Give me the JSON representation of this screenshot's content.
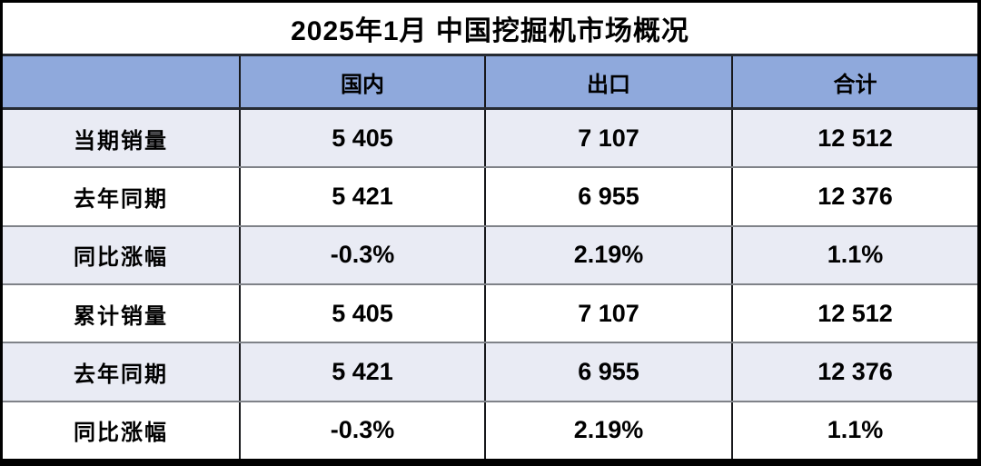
{
  "colors": {
    "header_bg": "#8FA9DC",
    "alt_row_bg": "#E9EBF4",
    "plain_row_bg": "#FFFFFF",
    "outer_border": "#000000",
    "vertical_border": "#17181B",
    "row_separator": "#7F8288",
    "header_separator": "#262B33",
    "text": "#000000"
  },
  "chart_data": {
    "type": "table",
    "title": "2025年1月 中国挖掘机市场概况",
    "columns": [
      "",
      "国内",
      "出口",
      "合计"
    ],
    "rows": [
      {
        "label": "当期销量",
        "values": [
          "5 405",
          "7 107",
          "12 512"
        ]
      },
      {
        "label": "去年同期",
        "values": [
          "5 421",
          "6 955",
          "12 376"
        ]
      },
      {
        "label": "同比涨幅",
        "values": [
          "-0.3%",
          "2.19%",
          "1.1%"
        ]
      },
      {
        "label": "累计销量",
        "values": [
          "5 405",
          "7 107",
          "12 512"
        ]
      },
      {
        "label": "去年同期",
        "values": [
          "5 421",
          "6 955",
          "12 376"
        ]
      },
      {
        "label": "同比涨幅",
        "values": [
          "-0.3%",
          "2.19%",
          "1.1%"
        ]
      }
    ]
  }
}
